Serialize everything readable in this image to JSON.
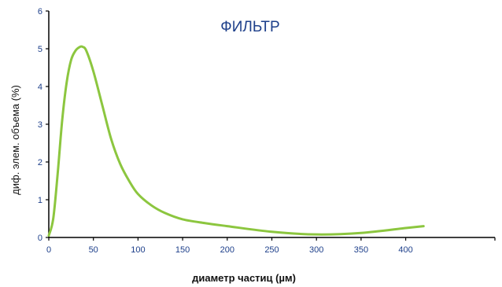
{
  "chart_data": {
    "type": "line",
    "title": "ФИЛЬТР",
    "xlabel": "диаметр частиц (µм)",
    "ylabel": "диф. элем. объема (%)",
    "xlim": [
      0,
      500
    ],
    "ylim": [
      0,
      6
    ],
    "x_ticks": [
      0,
      50,
      100,
      150,
      200,
      250,
      300,
      350,
      400
    ],
    "x_tick_labels": [
      "0",
      "50",
      "100",
      "150",
      "200",
      "250",
      "300",
      "350",
      "400"
    ],
    "y_ticks": [
      0,
      1,
      2,
      3,
      4,
      5,
      6
    ],
    "y_tick_labels": [
      "0",
      "1",
      "2",
      "3",
      "4",
      "5",
      "6"
    ],
    "grid": false,
    "legend": "none",
    "series": [
      {
        "color": "#8cc63f",
        "x": [
          0,
          5,
          10,
          15,
          20,
          25,
          30,
          35,
          38,
          42,
          50,
          60,
          70,
          80,
          90,
          100,
          115,
          130,
          150,
          175,
          200,
          250,
          300,
          350,
          400,
          420
        ],
        "y": [
          0.05,
          0.5,
          1.7,
          3.1,
          4.1,
          4.7,
          4.95,
          5.05,
          5.05,
          4.95,
          4.4,
          3.5,
          2.6,
          1.95,
          1.5,
          1.15,
          0.85,
          0.65,
          0.48,
          0.38,
          0.3,
          0.15,
          0.08,
          0.12,
          0.25,
          0.3
        ]
      }
    ]
  }
}
